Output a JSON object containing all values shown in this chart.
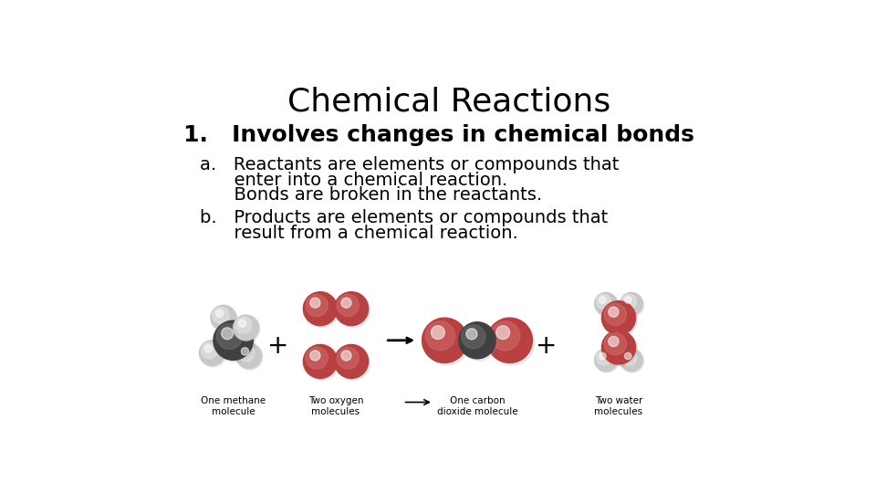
{
  "title": "Chemical Reactions",
  "title_fontsize": 26,
  "background_color": "#ffffff",
  "text_color": "#000000",
  "point1": "1.   Involves changes in chemical bonds",
  "point1_fontsize": 18,
  "point_a_line1": "a.   Reactants are elements or compounds that",
  "point_a_line2": "      enter into a chemical reaction.",
  "point_a_line3": "      Bonds are broken in the reactants.",
  "point_b_line1": "b.   Products are elements or compounds that",
  "point_b_line2": "      result from a chemical reaction.",
  "sub_fontsize": 14,
  "label_fontsize": 7.5,
  "label1": "One methane\nmolecule",
  "label2": "Two oxygen\nmolecules",
  "label3": "One carbon\ndioxide molecule",
  "label4": "Two water\nmolecules",
  "oxygen_color": "#b84040",
  "oxygen_highlight": "#d07070",
  "carbon_color": "#404040",
  "carbon_highlight": "#707070",
  "hydrogen_color": "#c8c8c8",
  "hydrogen_highlight": "#e8e8e8"
}
